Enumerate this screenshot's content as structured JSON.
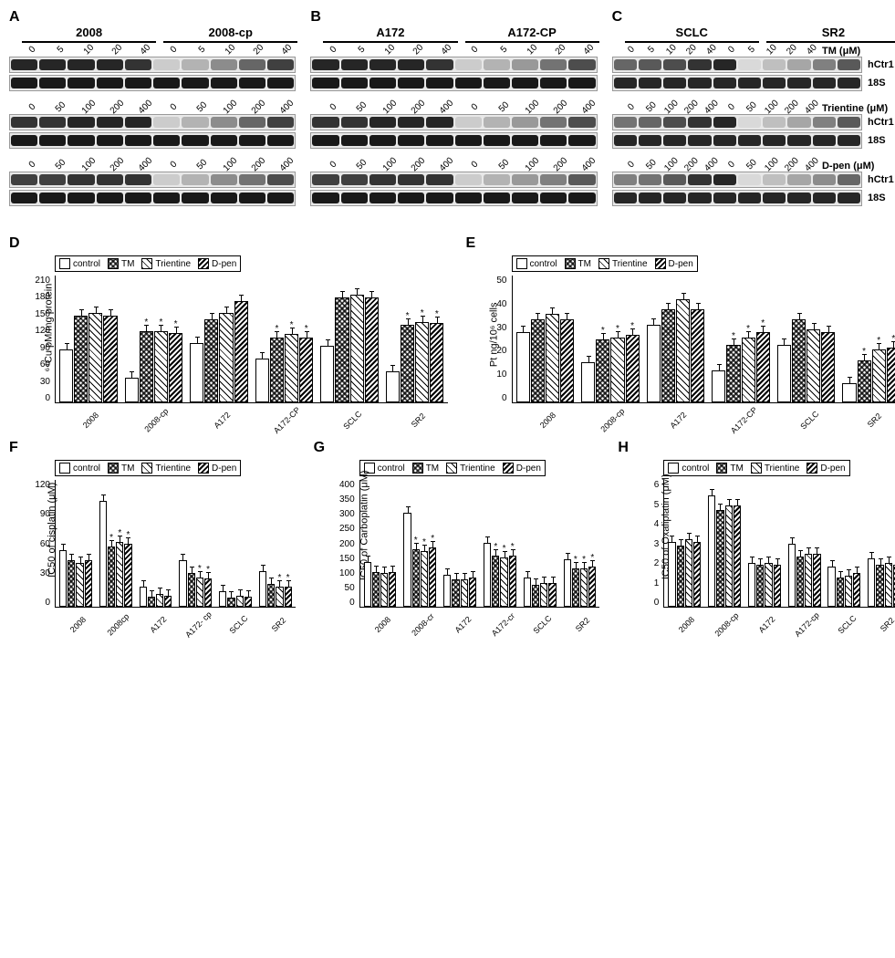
{
  "panels": {
    "A": {
      "cells": [
        "2008",
        "2008-cp"
      ]
    },
    "B": {
      "cells": [
        "A172",
        "A172-CP"
      ]
    },
    "C": {
      "cells": [
        "SCLC",
        "SR2"
      ]
    }
  },
  "treatments": [
    {
      "name": "TM",
      "unit": "μM",
      "doses": [
        "0",
        "5",
        "10",
        "20",
        "40"
      ],
      "doses_right": [
        "0",
        "5",
        "10",
        "20",
        "40"
      ]
    },
    {
      "name": "Trientine",
      "unit": "μM",
      "doses": [
        "0",
        "50",
        "100",
        "200",
        "400"
      ],
      "doses_right": [
        "0",
        "50",
        "100",
        "200",
        "400"
      ]
    },
    {
      "name": "D-pen",
      "unit": "μM",
      "doses": [
        "0",
        "50",
        "100",
        "200",
        "400"
      ],
      "doses_right": [
        "0",
        "50",
        "100",
        "200",
        "400"
      ]
    }
  ],
  "blot_targets": [
    "hCtr1",
    "18S"
  ],
  "blot_intensity_notes": "Sensitive lines (2008, A172, SCLC) show strong hCtr1 bands across doses; resistant lines (2008-cp, A172-CP, SR2) show faint hCtr1 at dose 0 increasing with chelator dose. 18S bands uniform.",
  "blot_panel_intensities": {
    "A": {
      "TM": {
        "hCtr1": [
          [
            0.85,
            0.85,
            0.85,
            0.85,
            0.8
          ],
          [
            0.2,
            0.3,
            0.45,
            0.6,
            0.75
          ]
        ],
        "18S": [
          [
            0.9,
            0.9,
            0.9,
            0.9,
            0.9
          ],
          [
            0.9,
            0.9,
            0.9,
            0.9,
            0.9
          ]
        ]
      },
      "Trientine": {
        "hCtr1": [
          [
            0.8,
            0.8,
            0.85,
            0.85,
            0.85
          ],
          [
            0.2,
            0.3,
            0.45,
            0.6,
            0.75
          ]
        ],
        "18S": [
          [
            0.9,
            0.9,
            0.9,
            0.9,
            0.9
          ],
          [
            0.9,
            0.9,
            0.9,
            0.9,
            0.9
          ]
        ]
      },
      "D-pen": {
        "hCtr1": [
          [
            0.75,
            0.75,
            0.8,
            0.8,
            0.8
          ],
          [
            0.2,
            0.3,
            0.45,
            0.55,
            0.7
          ]
        ],
        "18S": [
          [
            0.9,
            0.9,
            0.9,
            0.9,
            0.9
          ],
          [
            0.9,
            0.9,
            0.9,
            0.9,
            0.9
          ]
        ]
      }
    },
    "B": {
      "TM": {
        "hCtr1": [
          [
            0.85,
            0.85,
            0.85,
            0.85,
            0.8
          ],
          [
            0.2,
            0.3,
            0.4,
            0.55,
            0.7
          ]
        ],
        "18S": [
          [
            0.9,
            0.9,
            0.9,
            0.9,
            0.9
          ],
          [
            0.9,
            0.9,
            0.9,
            0.9,
            0.9
          ]
        ]
      },
      "Trientine": {
        "hCtr1": [
          [
            0.8,
            0.8,
            0.85,
            0.85,
            0.85
          ],
          [
            0.2,
            0.3,
            0.4,
            0.55,
            0.7
          ]
        ],
        "18S": [
          [
            0.9,
            0.9,
            0.9,
            0.9,
            0.9
          ],
          [
            0.9,
            0.9,
            0.9,
            0.9,
            0.9
          ]
        ]
      },
      "D-pen": {
        "hCtr1": [
          [
            0.75,
            0.75,
            0.8,
            0.8,
            0.8
          ],
          [
            0.2,
            0.3,
            0.4,
            0.5,
            0.65
          ]
        ],
        "18S": [
          [
            0.9,
            0.9,
            0.9,
            0.9,
            0.9
          ],
          [
            0.9,
            0.9,
            0.9,
            0.9,
            0.9
          ]
        ]
      }
    },
    "C": {
      "TM": {
        "hCtr1": [
          [
            0.6,
            0.65,
            0.7,
            0.8,
            0.85
          ],
          [
            0.15,
            0.25,
            0.35,
            0.5,
            0.65
          ]
        ],
        "18S": [
          [
            0.85,
            0.85,
            0.85,
            0.85,
            0.85
          ],
          [
            0.85,
            0.85,
            0.85,
            0.85,
            0.85
          ]
        ]
      },
      "Trientine": {
        "hCtr1": [
          [
            0.55,
            0.6,
            0.7,
            0.8,
            0.85
          ],
          [
            0.15,
            0.25,
            0.35,
            0.5,
            0.65
          ]
        ],
        "18S": [
          [
            0.85,
            0.85,
            0.85,
            0.85,
            0.85
          ],
          [
            0.85,
            0.85,
            0.85,
            0.85,
            0.85
          ]
        ]
      },
      "D-pen": {
        "hCtr1": [
          [
            0.5,
            0.55,
            0.65,
            0.8,
            0.85
          ],
          [
            0.15,
            0.25,
            0.35,
            0.45,
            0.6
          ]
        ],
        "18S": [
          [
            0.85,
            0.85,
            0.85,
            0.85,
            0.85
          ],
          [
            0.85,
            0.85,
            0.85,
            0.85,
            0.85
          ]
        ]
      }
    }
  },
  "chart_common": {
    "legend": [
      "control",
      "TM",
      "Trientine",
      "D-pen"
    ],
    "fill_classes": [
      "fill-control",
      "fill-tm",
      "fill-trientine",
      "fill-dpen"
    ],
    "x_categories": [
      "2008",
      "2008-cp",
      "A172",
      "A172-CP",
      "SCLC",
      "SR2"
    ]
  },
  "charts": {
    "D": {
      "ylabel": "⁶⁴Cu pM/mg protein",
      "yticks": [
        0,
        30,
        60,
        90,
        120,
        150,
        180,
        210
      ],
      "ylim": 210,
      "data": {
        "2008": {
          "control": 85,
          "TM": 140,
          "Trientine": 145,
          "D-pen": 140
        },
        "2008-cp": {
          "control": 38,
          "TM": 115,
          "Trientine": 115,
          "D-pen": 112,
          "sig": [
            "TM",
            "Trientine",
            "D-pen"
          ]
        },
        "A172": {
          "control": 95,
          "TM": 135,
          "Trientine": 145,
          "D-pen": 165
        },
        "A172-CP": {
          "control": 70,
          "TM": 105,
          "Trientine": 110,
          "D-pen": 105,
          "sig": [
            "TM",
            "Trientine",
            "D-pen"
          ]
        },
        "SCLC": {
          "control": 90,
          "TM": 170,
          "Trientine": 175,
          "D-pen": 170
        },
        "SR2": {
          "control": 48,
          "TM": 125,
          "Trientine": 130,
          "D-pen": 128,
          "sig": [
            "TM",
            "Trientine",
            "D-pen"
          ]
        }
      }
    },
    "E": {
      "ylabel": "Pt ng/10⁶ cells",
      "yticks": [
        0,
        10,
        20,
        30,
        40,
        50
      ],
      "ylim": 50,
      "data": {
        "2008": {
          "control": 27,
          "TM": 32,
          "Trientine": 34,
          "D-pen": 32
        },
        "2008-cp": {
          "control": 15,
          "TM": 24,
          "Trientine": 25,
          "D-pen": 26,
          "sig": [
            "TM",
            "Trientine",
            "D-pen"
          ]
        },
        "A172": {
          "control": 30,
          "TM": 36,
          "Trientine": 40,
          "D-pen": 36
        },
        "A172-CP": {
          "control": 12,
          "TM": 22,
          "Trientine": 25,
          "D-pen": 27,
          "sig": [
            "TM",
            "Trientine",
            "D-pen"
          ]
        },
        "SCLC": {
          "control": 22,
          "TM": 32,
          "Trientine": 28,
          "D-pen": 27
        },
        "SR2": {
          "control": 7,
          "TM": 16,
          "Trientine": 20,
          "D-pen": 21,
          "sig": [
            "TM",
            "Trientine",
            "D-pen"
          ]
        }
      }
    },
    "F": {
      "ylabel": "IC50 of cisplatin (μM)",
      "x_categories": [
        "2008",
        "2008cp",
        "A172",
        "A172- cp",
        "SCLC",
        "SR2"
      ],
      "yticks": [
        0,
        30,
        60,
        90,
        120
      ],
      "ylim": 120,
      "data": {
        "2008": {
          "control": 52,
          "TM": 42,
          "Trientine": 40,
          "D-pen": 42
        },
        "2008cp": {
          "control": 98,
          "TM": 55,
          "Trientine": 60,
          "D-pen": 58,
          "sig": [
            "TM",
            "Trientine",
            "D-pen"
          ]
        },
        "A172": {
          "control": 17,
          "TM": 8,
          "Trientine": 10,
          "D-pen": 9
        },
        "A172- cp": {
          "control": 42,
          "TM": 30,
          "Trientine": 26,
          "D-pen": 25,
          "sig": [
            "Trientine",
            "D-pen"
          ]
        },
        "SCLC": {
          "control": 13,
          "TM": 7,
          "Trientine": 9,
          "D-pen": 8
        },
        "SR2": {
          "control": 32,
          "TM": 20,
          "Trientine": 17,
          "D-pen": 17,
          "sig": [
            "Trientine",
            "D-pen"
          ]
        }
      }
    },
    "G": {
      "ylabel": "IC50 of Carboplatin (μM)",
      "x_categories": [
        "2008",
        "2008-cr",
        "A172",
        "A172-cr",
        "SCLC",
        "SR2"
      ],
      "yticks": [
        0,
        50,
        100,
        150,
        200,
        250,
        300,
        350,
        400
      ],
      "ylim": 400,
      "data": {
        "2008": {
          "control": 135,
          "TM": 105,
          "Trientine": 100,
          "D-pen": 105
        },
        "2008-cr": {
          "control": 290,
          "TM": 175,
          "Trientine": 170,
          "D-pen": 180,
          "sig": [
            "TM",
            "Trientine",
            "D-pen"
          ]
        },
        "A172": {
          "control": 95,
          "TM": 80,
          "Trientine": 82,
          "D-pen": 85
        },
        "A172-cr": {
          "control": 195,
          "TM": 155,
          "Trientine": 150,
          "D-pen": 155,
          "sig": [
            "TM",
            "Trientine",
            "D-pen"
          ]
        },
        "SCLC": {
          "control": 85,
          "TM": 62,
          "Trientine": 70,
          "D-pen": 68
        },
        "SR2": {
          "control": 145,
          "TM": 115,
          "Trientine": 115,
          "D-pen": 120,
          "sig": [
            "TM",
            "Trientine",
            "D-pen"
          ]
        }
      }
    },
    "H": {
      "ylabel": "IC50 of Oxaliplatin (μM)",
      "x_categories": [
        "2008",
        "2008-cp",
        "A172",
        "A172-cp",
        "SCLC",
        "SR2"
      ],
      "yticks": [
        0,
        1,
        2,
        3,
        4,
        5,
        6
      ],
      "ylim": 6,
      "data": {
        "2008": {
          "control": 3.0,
          "TM": 2.8,
          "Trientine": 3.1,
          "D-pen": 3.0
        },
        "2008-cp": {
          "control": 5.2,
          "TM": 4.5,
          "Trientine": 4.7,
          "D-pen": 4.7
        },
        "A172": {
          "control": 2.0,
          "TM": 1.9,
          "Trientine": 2.0,
          "D-pen": 1.9
        },
        "A172-cp": {
          "control": 2.9,
          "TM": 2.3,
          "Trientine": 2.4,
          "D-pen": 2.4
        },
        "SCLC": {
          "control": 1.8,
          "TM": 1.3,
          "Trientine": 1.4,
          "D-pen": 1.5
        },
        "SR2": {
          "control": 2.2,
          "TM": 1.9,
          "Trientine": 2.0,
          "D-pen": 1.9
        }
      }
    }
  },
  "colors": {
    "background": "#ffffff",
    "text": "#000000",
    "blot_bg": "#e8e8e8",
    "blot_band_dark": "#1a1a1a"
  },
  "typography": {
    "panel_letter_pt": 16,
    "axis_label_pt": 11,
    "tick_pt": 10,
    "body_pt": 12,
    "family": "Arial"
  }
}
